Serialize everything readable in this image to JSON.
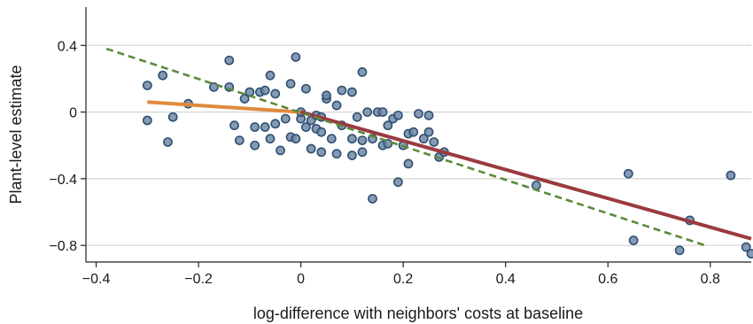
{
  "chart_data": {
    "type": "scatter",
    "title": "",
    "xlabel": "log-difference with neighbors' costs at baseline",
    "ylabel": "Plant-level estimate",
    "xlim": [
      -0.42,
      0.88
    ],
    "ylim": [
      -0.9,
      0.63
    ],
    "x_ticks": [
      -0.4,
      -0.2,
      0,
      0.2,
      0.4,
      0.6,
      0.8
    ],
    "x_tick_labels": [
      "−0.4",
      "−0.2",
      "0",
      "0.2",
      "0.4",
      "0.6",
      "0.8"
    ],
    "y_ticks": [
      0.4,
      0,
      -0.4,
      -0.8
    ],
    "y_tick_labels": [
      "0.4",
      "0",
      "−0.4",
      "−0.8"
    ],
    "grid": "horizontal",
    "legend": "none",
    "colors": {
      "points_fill": "#6f8aa6",
      "points_stroke": "#2f4f72",
      "fit_negative": "#e08a3c",
      "fit_positive": "#9b3a3f",
      "linear_fit_dashed": "#5b8a3a",
      "grid": "#d4d4d4",
      "axis": "#222222"
    },
    "points": [
      {
        "x": -0.3,
        "y": 0.16
      },
      {
        "x": -0.3,
        "y": -0.05
      },
      {
        "x": -0.27,
        "y": 0.22
      },
      {
        "x": -0.26,
        "y": -0.18
      },
      {
        "x": -0.25,
        "y": -0.03
      },
      {
        "x": -0.22,
        "y": 0.05
      },
      {
        "x": -0.17,
        "y": 0.15
      },
      {
        "x": -0.14,
        "y": 0.31
      },
      {
        "x": -0.14,
        "y": 0.15
      },
      {
        "x": -0.13,
        "y": -0.08
      },
      {
        "x": -0.12,
        "y": -0.17
      },
      {
        "x": -0.11,
        "y": 0.08
      },
      {
        "x": -0.1,
        "y": 0.12
      },
      {
        "x": -0.09,
        "y": -0.2
      },
      {
        "x": -0.09,
        "y": -0.09
      },
      {
        "x": -0.08,
        "y": 0.12
      },
      {
        "x": -0.07,
        "y": 0.13
      },
      {
        "x": -0.07,
        "y": -0.09
      },
      {
        "x": -0.06,
        "y": -0.16
      },
      {
        "x": -0.06,
        "y": 0.22
      },
      {
        "x": -0.05,
        "y": 0.11
      },
      {
        "x": -0.05,
        "y": -0.07
      },
      {
        "x": -0.04,
        "y": -0.23
      },
      {
        "x": -0.03,
        "y": -0.04
      },
      {
        "x": -0.02,
        "y": 0.17
      },
      {
        "x": -0.02,
        "y": -0.15
      },
      {
        "x": -0.01,
        "y": -0.16
      },
      {
        "x": -0.01,
        "y": 0.33
      },
      {
        "x": 0.0,
        "y": -0.04
      },
      {
        "x": 0.0,
        "y": 0.0
      },
      {
        "x": 0.01,
        "y": -0.09
      },
      {
        "x": 0.01,
        "y": 0.14
      },
      {
        "x": 0.02,
        "y": -0.22
      },
      {
        "x": 0.02,
        "y": -0.05
      },
      {
        "x": 0.03,
        "y": -0.02
      },
      {
        "x": 0.03,
        "y": -0.1
      },
      {
        "x": 0.04,
        "y": -0.03
      },
      {
        "x": 0.04,
        "y": -0.24
      },
      {
        "x": 0.04,
        "y": -0.12
      },
      {
        "x": 0.05,
        "y": 0.08
      },
      {
        "x": 0.05,
        "y": 0.1
      },
      {
        "x": 0.06,
        "y": -0.16
      },
      {
        "x": 0.07,
        "y": 0.04
      },
      {
        "x": 0.07,
        "y": -0.25
      },
      {
        "x": 0.08,
        "y": 0.13
      },
      {
        "x": 0.08,
        "y": -0.08
      },
      {
        "x": 0.1,
        "y": 0.12
      },
      {
        "x": 0.1,
        "y": -0.16
      },
      {
        "x": 0.1,
        "y": -0.26
      },
      {
        "x": 0.11,
        "y": -0.03
      },
      {
        "x": 0.12,
        "y": 0.24
      },
      {
        "x": 0.12,
        "y": -0.17
      },
      {
        "x": 0.12,
        "y": -0.24
      },
      {
        "x": 0.13,
        "y": 0.0
      },
      {
        "x": 0.14,
        "y": -0.16
      },
      {
        "x": 0.14,
        "y": -0.52
      },
      {
        "x": 0.15,
        "y": 0.0
      },
      {
        "x": 0.16,
        "y": -0.2
      },
      {
        "x": 0.16,
        "y": 0.0
      },
      {
        "x": 0.17,
        "y": -0.08
      },
      {
        "x": 0.17,
        "y": -0.19
      },
      {
        "x": 0.18,
        "y": -0.04
      },
      {
        "x": 0.19,
        "y": -0.02
      },
      {
        "x": 0.19,
        "y": -0.42
      },
      {
        "x": 0.2,
        "y": -0.2
      },
      {
        "x": 0.21,
        "y": -0.13
      },
      {
        "x": 0.21,
        "y": -0.31
      },
      {
        "x": 0.22,
        "y": -0.12
      },
      {
        "x": 0.23,
        "y": -0.01
      },
      {
        "x": 0.24,
        "y": -0.16
      },
      {
        "x": 0.25,
        "y": -0.02
      },
      {
        "x": 0.25,
        "y": -0.12
      },
      {
        "x": 0.26,
        "y": -0.18
      },
      {
        "x": 0.27,
        "y": -0.27
      },
      {
        "x": 0.28,
        "y": -0.24
      },
      {
        "x": 0.46,
        "y": -0.44
      },
      {
        "x": 0.64,
        "y": -0.37
      },
      {
        "x": 0.65,
        "y": -0.77
      },
      {
        "x": 0.74,
        "y": -0.83
      },
      {
        "x": 0.76,
        "y": -0.65
      },
      {
        "x": 0.84,
        "y": -0.38
      },
      {
        "x": 0.87,
        "y": -0.81
      },
      {
        "x": 0.88,
        "y": -0.85
      }
    ],
    "fit_lines": [
      {
        "style": "solid",
        "color": "#e08a3c",
        "x": [
          -0.3,
          0.0
        ],
        "y": [
          0.06,
          0.0
        ]
      },
      {
        "style": "solid",
        "color": "#9b3a3f",
        "x": [
          0.0,
          0.88
        ],
        "y": [
          0.0,
          -0.76
        ]
      },
      {
        "style": "dashed",
        "color": "#5b8a3a",
        "x": [
          -0.38,
          0.79
        ],
        "y": [
          0.38,
          -0.8
        ]
      }
    ]
  }
}
